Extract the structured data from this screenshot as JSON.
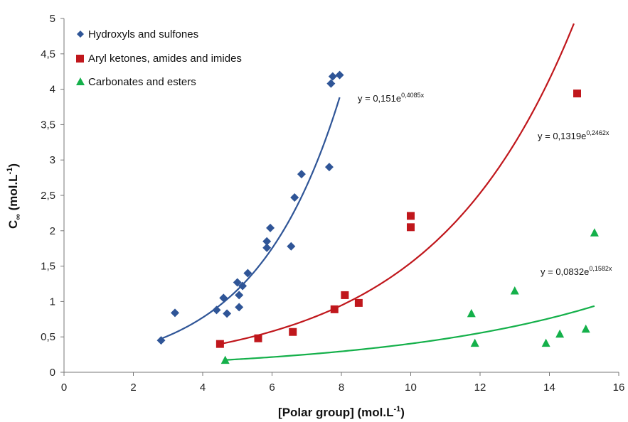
{
  "chart_data": {
    "type": "scatter",
    "xlabel": {
      "main": "[Polar group] (mol.L",
      "sup": "-1",
      "tail": ")"
    },
    "ylabel": {
      "main": "C",
      "sub": "∞",
      "rest": " (mol.L",
      "sup": "-1",
      "tail": ")"
    },
    "xlim": [
      0,
      16
    ],
    "ylim": [
      0,
      5
    ],
    "xticks": [
      0,
      2,
      4,
      6,
      8,
      10,
      12,
      14,
      16
    ],
    "yticks": [
      0,
      0.5,
      1,
      1.5,
      2,
      2.5,
      3,
      3.5,
      4,
      4.5,
      5
    ],
    "xtick_labels": [
      "0",
      "2",
      "4",
      "6",
      "8",
      "10",
      "12",
      "14",
      "16"
    ],
    "ytick_labels": [
      "0",
      "0,5",
      "1",
      "1,5",
      "2",
      "2,5",
      "3",
      "3,5",
      "4",
      "4,5",
      "5"
    ],
    "grid": false,
    "legend_position": "top-left",
    "series": [
      {
        "name": "Hydroxyls and sulfones",
        "marker": "diamond",
        "color": "#2f5597",
        "points": [
          [
            2.8,
            0.45
          ],
          [
            3.2,
            0.84
          ],
          [
            4.4,
            0.88
          ],
          [
            4.6,
            1.05
          ],
          [
            4.7,
            0.83
          ],
          [
            5.0,
            1.27
          ],
          [
            5.05,
            1.09
          ],
          [
            5.05,
            0.92
          ],
          [
            5.15,
            1.22
          ],
          [
            5.3,
            1.4
          ],
          [
            5.85,
            1.76
          ],
          [
            5.85,
            1.85
          ],
          [
            5.95,
            2.04
          ],
          [
            6.55,
            1.78
          ],
          [
            6.65,
            2.47
          ],
          [
            6.85,
            2.8
          ],
          [
            7.65,
            2.9
          ],
          [
            7.7,
            4.08
          ],
          [
            7.75,
            4.18
          ],
          [
            7.95,
            4.2
          ]
        ],
        "fit": {
          "a": 0.151,
          "b": 0.4085,
          "x_range": [
            2.8,
            7.95
          ]
        },
        "equation": {
          "base": "y = 0,151e",
          "exp": "0,4085x"
        }
      },
      {
        "name": "Aryl ketones, amides and imides",
        "marker": "square",
        "color": "#c0171c",
        "points": [
          [
            4.5,
            0.4
          ],
          [
            5.6,
            0.48
          ],
          [
            6.6,
            0.57
          ],
          [
            7.8,
            0.89
          ],
          [
            8.1,
            1.09
          ],
          [
            8.5,
            0.98
          ],
          [
            10.0,
            2.05
          ],
          [
            10.0,
            2.21
          ],
          [
            14.8,
            3.94
          ]
        ],
        "fit": {
          "a": 0.1319,
          "b": 0.2462,
          "x_range": [
            4.5,
            16
          ]
        },
        "equation": {
          "base": "y = 0,1319e",
          "exp": "0,2462x"
        }
      },
      {
        "name": "Carbonates and esters",
        "marker": "triangle",
        "color": "#14b04a",
        "points": [
          [
            4.65,
            0.17
          ],
          [
            11.75,
            0.83
          ],
          [
            11.85,
            0.41
          ],
          [
            13.0,
            1.15
          ],
          [
            13.9,
            0.41
          ],
          [
            14.3,
            0.54
          ],
          [
            15.05,
            0.61
          ],
          [
            15.3,
            1.97
          ]
        ],
        "fit": {
          "a": 0.0832,
          "b": 0.1582,
          "x_range": [
            4.65,
            15.3
          ]
        },
        "equation": {
          "base": "y = 0,0832e",
          "exp": "0,1582x"
        }
      }
    ]
  }
}
